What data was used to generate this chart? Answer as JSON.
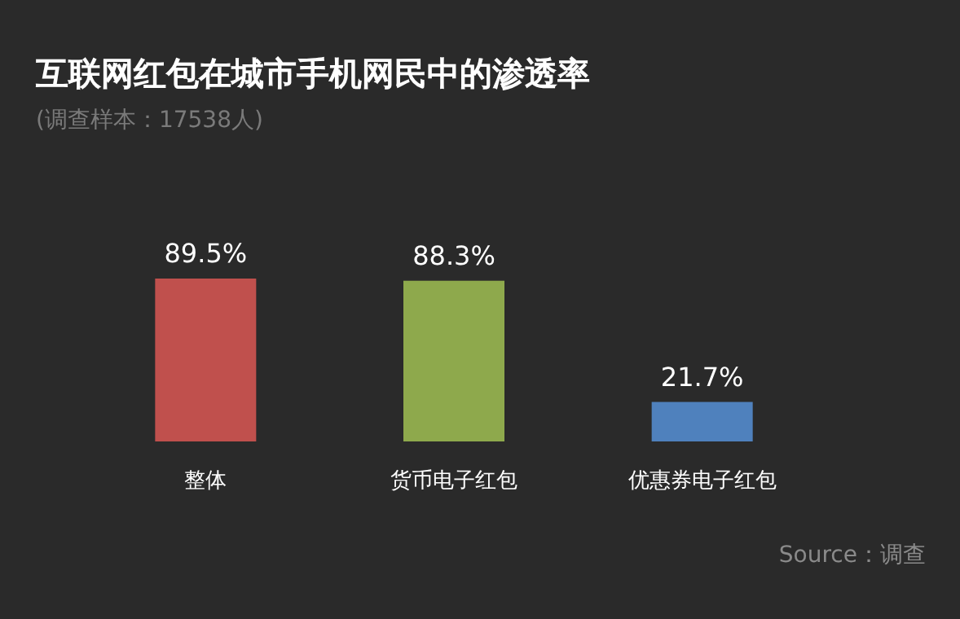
{
  "chart_data": {
    "type": "bar",
    "title": "互联网红包在城市手机网民中的渗透率",
    "subtitle": "(调查样本：17538人)",
    "categories": [
      "整体",
      "货币电子红包",
      "优惠券电子红包"
    ],
    "values": [
      89.5,
      88.3,
      21.7
    ],
    "colors": [
      "#c0504d",
      "#8ea94c",
      "#4f81bd"
    ],
    "value_labels": [
      "89.5%",
      "88.3%",
      "21.7%"
    ],
    "grid": false,
    "annotations": [
      "Source：调查"
    ]
  }
}
